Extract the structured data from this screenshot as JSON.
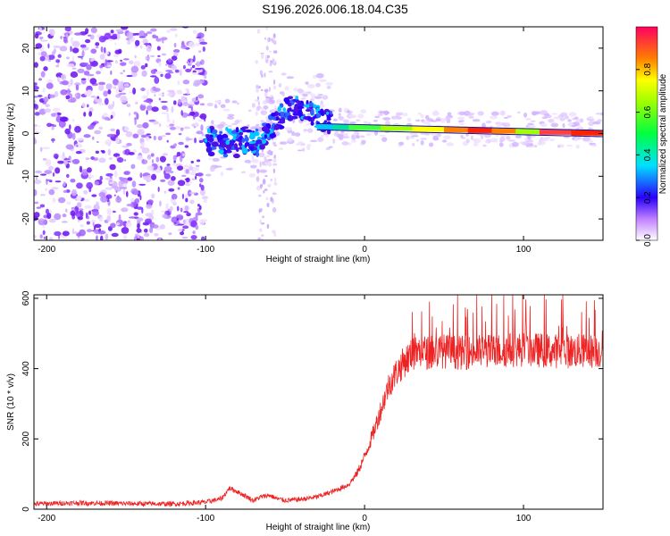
{
  "title": "S196.2026.006.18.04.C35",
  "chart_data": [
    {
      "type": "heatmap",
      "title": "S196.2026.006.18.04.C35",
      "xlabel": "Height of straight line (km)",
      "ylabel": "Frequency (Hz)",
      "xlim": [
        -208,
        150
      ],
      "ylim": [
        -25,
        25
      ],
      "xticks": [
        -200,
        -100,
        0,
        100
      ],
      "yticks": [
        -20,
        -10,
        0,
        10,
        20
      ],
      "colorbar": {
        "label": "Normalized spectral amplitude",
        "range": [
          0,
          1
        ],
        "ticks": [
          0.0,
          0.2,
          0.4,
          0.6,
          0.8
        ]
      },
      "signal_track": [
        {
          "x": -100,
          "y": 0
        },
        {
          "x": -90,
          "y": -2
        },
        {
          "x": -80,
          "y": -1
        },
        {
          "x": -70,
          "y": -3
        },
        {
          "x": -60,
          "y": 2
        },
        {
          "x": -55,
          "y": 4
        },
        {
          "x": -45,
          "y": 7
        },
        {
          "x": -38,
          "y": 6
        },
        {
          "x": -30,
          "y": 4
        },
        {
          "x": -20,
          "y": 2
        },
        {
          "x": -10,
          "y": 2
        },
        {
          "x": 0,
          "y": 1.5
        },
        {
          "x": 20,
          "y": 1
        },
        {
          "x": 60,
          "y": 0.5
        },
        {
          "x": 100,
          "y": 0.2
        },
        {
          "x": 150,
          "y": 0
        }
      ]
    },
    {
      "type": "line",
      "xlabel": "Height of straight line (km)",
      "ylabel": "SNR (10 * v/v)",
      "xlim": [
        -208,
        150
      ],
      "ylim": [
        0,
        610
      ],
      "xticks": [
        -200,
        -100,
        0,
        100
      ],
      "yticks": [
        0,
        200,
        400,
        600
      ],
      "series": [
        {
          "name": "SNR",
          "color": "#ee2222",
          "x": [
            -208,
            -180,
            -150,
            -120,
            -100,
            -90,
            -85,
            -80,
            -70,
            -65,
            -60,
            -55,
            -50,
            -40,
            -30,
            -20,
            -10,
            -5,
            0,
            5,
            10,
            15,
            20,
            25,
            30,
            35,
            40,
            50,
            60,
            80,
            100,
            120,
            150
          ],
          "values": [
            15,
            18,
            16,
            15,
            20,
            30,
            60,
            50,
            25,
            35,
            40,
            30,
            25,
            28,
            35,
            50,
            70,
            100,
            150,
            210,
            280,
            350,
            390,
            420,
            440,
            450,
            445,
            450,
            445,
            450,
            455,
            450,
            450
          ]
        }
      ]
    }
  ]
}
